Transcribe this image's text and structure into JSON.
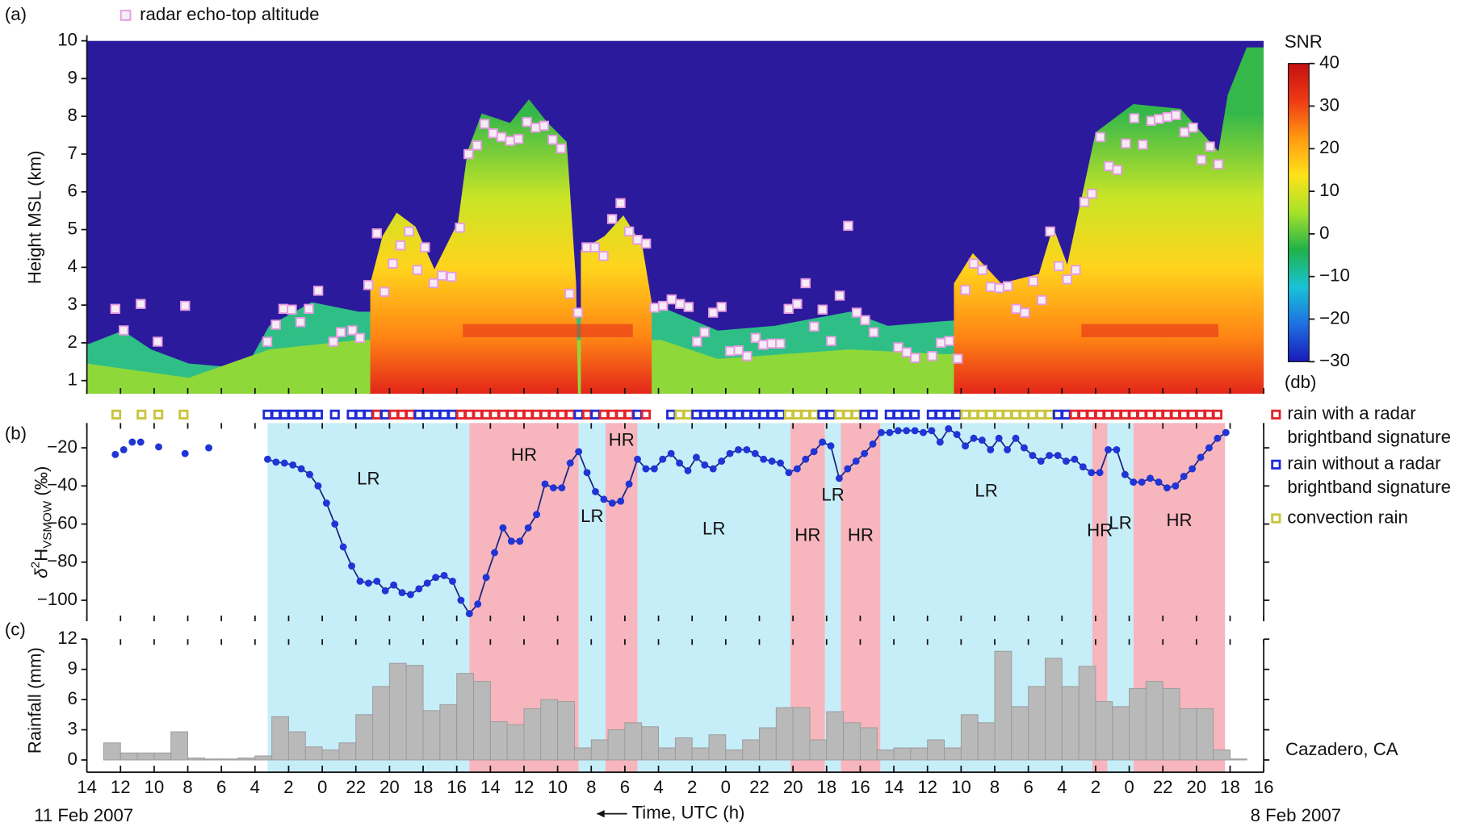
{
  "chart_data": [
    {
      "type": "scatter",
      "panel_label": "(a)",
      "ylabel": "Height MSL (km)",
      "xlim": [
        0,
        70
      ],
      "ylim": [
        0.65,
        10
      ],
      "yticks": [
        1,
        2,
        3,
        4,
        5,
        6,
        7,
        8,
        9,
        10
      ],
      "series": [
        {
          "name": "radar echo-top altitude",
          "color": "#e49be0",
          "x": [
            1.69,
            2.19,
            3.2,
            4.21,
            5.84,
            10.73,
            11.24,
            11.69,
            12.19,
            12.7,
            13.2,
            13.76,
            14.66,
            15.11,
            15.79,
            16.24,
            16.74,
            17.25,
            17.7,
            18.2,
            18.65,
            19.16,
            19.66,
            20.11,
            20.62,
            21.12,
            21.69,
            22.19,
            22.7,
            23.2,
            23.65,
            24.16,
            24.66,
            25.17,
            25.67,
            26.18,
            26.69,
            27.19,
            27.7,
            28.2,
            28.71,
            29.21,
            29.72,
            30.22,
            30.73,
            31.24,
            31.74,
            32.25,
            32.75,
            33.26,
            33.76,
            34.27,
            34.78,
            35.28,
            35.79,
            36.29,
            36.74,
            37.25,
            37.75,
            38.26,
            38.76,
            39.27,
            39.78,
            40.22,
            40.73,
            41.24,
            41.74,
            42.25,
            42.75,
            43.26,
            43.76,
            44.27,
            44.78,
            45.28,
            45.79,
            46.29,
            46.8,
            48.26,
            48.76,
            49.27,
            50.28,
            50.79,
            51.29,
            51.8,
            52.25,
            52.75,
            53.26,
            53.76,
            54.27,
            54.78,
            55.28,
            55.79,
            56.29,
            56.8,
            57.3,
            57.81,
            58.31,
            58.82,
            59.33,
            59.78,
            60.28,
            60.79,
            61.29,
            61.8,
            62.3,
            62.81,
            63.31,
            63.76,
            64.27,
            64.78,
            65.28,
            65.79,
            66.29,
            66.8,
            67.3
          ],
          "values": [
            2.9,
            2.33,
            3.03,
            2.03,
            2.98,
            2.03,
            2.48,
            2.9,
            2.88,
            2.55,
            2.9,
            3.38,
            2.03,
            2.28,
            2.33,
            2.13,
            3.53,
            4.9,
            3.35,
            4.1,
            4.58,
            4.95,
            3.93,
            4.53,
            3.58,
            3.78,
            3.75,
            5.05,
            7.0,
            7.23,
            7.8,
            7.55,
            7.45,
            7.35,
            7.4,
            7.85,
            7.7,
            7.75,
            7.38,
            7.15,
            3.3,
            2.8,
            4.53,
            4.53,
            4.3,
            5.28,
            5.7,
            4.95,
            4.73,
            4.63,
            2.93,
            2.98,
            3.15,
            3.03,
            2.95,
            2.03,
            2.28,
            2.8,
            2.95,
            1.78,
            1.8,
            1.65,
            2.13,
            1.95,
            1.98,
            1.98,
            2.9,
            3.03,
            3.58,
            2.43,
            2.88,
            2.05,
            3.25,
            5.1,
            2.8,
            2.6,
            2.28,
            1.88,
            1.75,
            1.6,
            1.65,
            2.0,
            2.05,
            1.58,
            3.4,
            4.1,
            3.93,
            3.48,
            3.45,
            3.5,
            2.9,
            2.8,
            3.63,
            3.13,
            4.95,
            4.03,
            3.68,
            3.93,
            5.73,
            5.95,
            7.45,
            6.68,
            6.58,
            7.28,
            7.95,
            7.25,
            7.88,
            7.93,
            7.98,
            8.03,
            7.58,
            7.7,
            6.85,
            7.2,
            6.73
          ]
        }
      ],
      "colorbar": {
        "title": "SNR",
        "unit": "(db)",
        "lim": [
          -30,
          40
        ],
        "ticks": [
          40,
          30,
          20,
          10,
          0,
          {
            "value": -10,
            "label": "−10"
          },
          {
            "value": -20,
            "label": "−20"
          },
          {
            "value": -30,
            "label": "−30"
          }
        ],
        "colors": [
          "#1a1ab8",
          "#1e6fe0",
          "#19c2d8",
          "#1fb24a",
          "#a6e22a",
          "#ffe21a",
          "#ff9a12",
          "#ef3a14",
          "#c40f12"
        ]
      }
    },
    {
      "type": "line",
      "panel_label": "(b)",
      "ylabel": {
        "symbol": "δ",
        "sup": "2",
        "main": "H",
        "sub": "VSMOW",
        "unit": " (‰)"
      },
      "xlim": [
        0,
        70
      ],
      "ylim": [
        -111,
        -7
      ],
      "yticks": [
        {
          "value": -20,
          "label": "−20"
        },
        {
          "value": -40,
          "label": "−40"
        },
        {
          "value": -60,
          "label": "−60"
        },
        {
          "value": -80,
          "label": "−80"
        },
        {
          "value": -100,
          "label": "−100"
        }
      ],
      "color": "#1b2580",
      "marker_color": "#1f35d6",
      "x": [
        1.69,
        1.94,
        2.19,
        2.45,
        2.7,
        2.95,
        3.2,
        3.7,
        4.27,
        5.0,
        5.84,
        6.5,
        7.25,
        9.0,
        10.75,
        11.25,
        11.75,
        12.25,
        12.75,
        13.25,
        13.75,
        14.25,
        14.75,
        15.25,
        15.75,
        16.25,
        16.75,
        17.25,
        17.75,
        18.25,
        18.75,
        19.25,
        19.75,
        20.25,
        20.75,
        21.25,
        21.75,
        22.25,
        22.75,
        23.25,
        23.75,
        24.25,
        24.75,
        25.25,
        25.75,
        26.25,
        26.75,
        27.25,
        27.75,
        28.25,
        28.75,
        29.25,
        29.75,
        30.25,
        30.75,
        31.25,
        31.75,
        32.25,
        32.75,
        33.25,
        33.75,
        34.25,
        34.75,
        35.25,
        35.75,
        36.25,
        36.75,
        37.25,
        37.75,
        38.25,
        38.75,
        39.25,
        39.75,
        40.25,
        40.75,
        41.25,
        41.75,
        42.25,
        42.75,
        43.25,
        43.75,
        44.25,
        44.75,
        45.25,
        45.75,
        46.25,
        46.75,
        47.25,
        47.75,
        48.25,
        48.75,
        49.25,
        49.75,
        50.25,
        50.75,
        51.25,
        51.75,
        52.25,
        52.75,
        53.25,
        53.75,
        54.25,
        54.75,
        55.25,
        55.75,
        56.25,
        56.75,
        57.25,
        57.75,
        58.25,
        58.75,
        59.25,
        59.75,
        60.25,
        60.75,
        61.25,
        61.75,
        62.25,
        62.75,
        63.25,
        63.75,
        64.25,
        64.75,
        65.25,
        65.75,
        66.25,
        66.75,
        67.25,
        67.75
      ],
      "values": [
        -23.5,
        null,
        -21,
        null,
        -17,
        null,
        -17,
        null,
        -19.5,
        null,
        -23,
        null,
        -20,
        null,
        -26,
        -27.5,
        -28,
        -29,
        -31,
        -34,
        -40,
        -49,
        -60,
        -72,
        -82,
        -90,
        -91,
        -90,
        -95,
        -92,
        -96,
        -97,
        -94,
        -91,
        -88,
        -87,
        -90,
        -100,
        -107,
        -102,
        -88,
        -75,
        -62,
        -69,
        -69,
        -62,
        -55,
        -39,
        -41,
        -41,
        -28,
        -22,
        -33,
        -43,
        -47,
        -49,
        -48,
        -39,
        -26,
        -31,
        -31,
        -26,
        -23,
        -28,
        -32,
        -25,
        -29,
        -31,
        -27,
        -23,
        -21,
        -21,
        -23,
        -26,
        -27,
        -28,
        -33,
        -31,
        -26,
        -22,
        -17,
        -19,
        -36,
        -31,
        -27,
        -23,
        -18,
        -12,
        -12,
        -11,
        -11,
        -11,
        -12,
        -11,
        -17,
        -10,
        -13,
        -19,
        -15,
        -16,
        -21,
        -15,
        -21,
        -15,
        -20,
        -24,
        -27,
        -24,
        -24,
        -27,
        -26,
        -30,
        -33,
        -33,
        -21,
        -21,
        -34,
        -38,
        -38,
        -36,
        -38,
        -41,
        -40,
        -35,
        -31,
        -25,
        -20,
        -15,
        -12
      ],
      "region_colors": {
        "LR": "#c6eef9",
        "HR": "#f7b5bd"
      },
      "regions": [
        {
          "label": "LR",
          "start": 10.75,
          "end": 22.75
        },
        {
          "label": "HR",
          "start": 22.75,
          "end": 29.25
        },
        {
          "label": "LR",
          "start": 29.25,
          "end": 30.85
        },
        {
          "label": "HR",
          "start": 30.85,
          "end": 32.75
        },
        {
          "label": "LR",
          "start": 32.75,
          "end": 41.85
        },
        {
          "label": "HR",
          "start": 41.85,
          "end": 43.9
        },
        {
          "label": "LR",
          "start": 43.9,
          "end": 44.85
        },
        {
          "label": "HR",
          "start": 44.85,
          "end": 47.2
        },
        {
          "label": "LR",
          "start": 47.2,
          "end": 59.8
        },
        {
          "label": "HR",
          "start": 59.8,
          "end": 60.7
        },
        {
          "label": "LR",
          "start": 60.7,
          "end": 62.25
        },
        {
          "label": "HR",
          "start": 62.25,
          "end": 67.7
        }
      ],
      "rain_types": {
        "legend": [
          {
            "name": [
              "rain with a radar",
              "brightband signature"
            ],
            "color": "#e3222a"
          },
          {
            "name": [
              "rain without a radar",
              "brightband signature"
            ],
            "color": "#1e2bd6"
          },
          {
            "name": [
              "convection rain"
            ],
            "color": "#c9c43c"
          }
        ],
        "x": [
          1.75,
          3.25,
          4.25,
          5.75,
          10.75,
          11.25,
          11.75,
          12.25,
          12.75,
          13.25,
          13.75,
          14.25,
          14.75,
          15.25,
          15.75,
          16.25,
          16.75,
          17.25,
          17.75,
          18.25,
          18.75,
          19.25,
          19.75,
          20.25,
          20.75,
          21.25,
          21.75,
          22.25,
          22.75,
          23.25,
          23.75,
          24.25,
          24.75,
          25.25,
          25.75,
          26.25,
          26.75,
          27.25,
          27.75,
          28.25,
          28.75,
          29.25,
          29.75,
          30.25,
          30.75,
          31.25,
          31.75,
          32.25,
          32.75,
          33.25,
          33.75,
          34.25,
          34.75,
          35.25,
          35.75,
          36.25,
          36.75,
          37.25,
          37.75,
          38.25,
          38.75,
          39.25,
          39.75,
          40.25,
          40.75,
          41.25,
          41.75,
          42.25,
          42.75,
          43.25,
          43.75,
          44.25,
          44.75,
          45.25,
          45.75,
          46.25,
          46.75,
          47.25,
          47.75,
          48.25,
          48.75,
          49.25,
          49.75,
          50.25,
          50.75,
          51.25,
          51.75,
          52.25,
          52.75,
          53.25,
          53.75,
          54.25,
          54.75,
          55.25,
          55.75,
          56.25,
          56.75,
          57.25,
          57.75,
          58.25,
          58.75,
          59.25,
          59.75,
          60.25,
          60.75,
          61.25,
          61.75,
          62.25,
          62.75,
          63.25,
          63.75,
          64.25,
          64.75,
          65.25,
          65.75,
          66.25,
          66.75,
          67.25
        ],
        "kinds": [
          2,
          2,
          2,
          2,
          1,
          1,
          1,
          1,
          1,
          1,
          1,
          null,
          1,
          null,
          1,
          1,
          1,
          0,
          1,
          0,
          0,
          0,
          1,
          1,
          1,
          1,
          1,
          0,
          0,
          0,
          0,
          0,
          0,
          0,
          0,
          0,
          0,
          0,
          0,
          0,
          0,
          1,
          0,
          1,
          0,
          0,
          0,
          0,
          1,
          0,
          null,
          null,
          1,
          2,
          2,
          1,
          1,
          1,
          1,
          1,
          1,
          1,
          1,
          1,
          1,
          1,
          2,
          2,
          2,
          2,
          1,
          1,
          2,
          2,
          2,
          1,
          1,
          null,
          1,
          1,
          1,
          1,
          null,
          1,
          1,
          1,
          1,
          2,
          2,
          2,
          2,
          2,
          2,
          2,
          2,
          2,
          2,
          2,
          1,
          1,
          0,
          0,
          0,
          0,
          0,
          0,
          0,
          0,
          0,
          0,
          0,
          0,
          0,
          0,
          0,
          0,
          0,
          0
        ]
      }
    },
    {
      "type": "histogram",
      "panel_label": "(c)",
      "ylabel": "Rainfall (mm)",
      "annotation": "Cazadero, CA",
      "xlabel": "Time, UTC (h)",
      "start_date": "11 Feb 2007",
      "end_date": "8 Feb 2007",
      "xlim": [
        0,
        70
      ],
      "xticks": [
        {
          "value": 0,
          "label": "14"
        },
        {
          "value": 2,
          "label": "12"
        },
        {
          "value": 4,
          "label": "10"
        },
        {
          "value": 6,
          "label": "8"
        },
        {
          "value": 8,
          "label": "6"
        },
        {
          "value": 10,
          "label": "4"
        },
        {
          "value": 12,
          "label": "2"
        },
        {
          "value": 14,
          "label": "0"
        },
        {
          "value": 16,
          "label": "22"
        },
        {
          "value": 18,
          "label": "20"
        },
        {
          "value": 20,
          "label": "18"
        },
        {
          "value": 22,
          "label": "16"
        },
        {
          "value": 24,
          "label": "14"
        },
        {
          "value": 26,
          "label": "12"
        },
        {
          "value": 28,
          "label": "10"
        },
        {
          "value": 30,
          "label": "8"
        },
        {
          "value": 32,
          "label": "6"
        },
        {
          "value": 34,
          "label": "4"
        },
        {
          "value": 36,
          "label": "2"
        },
        {
          "value": 38,
          "label": "0"
        },
        {
          "value": 40,
          "label": "22"
        },
        {
          "value": 42,
          "label": "20"
        },
        {
          "value": 44,
          "label": "18"
        },
        {
          "value": 46,
          "label": "16"
        },
        {
          "value": 48,
          "label": "14"
        },
        {
          "value": 50,
          "label": "12"
        },
        {
          "value": 52,
          "label": "10"
        },
        {
          "value": 54,
          "label": "8"
        },
        {
          "value": 56,
          "label": "6"
        },
        {
          "value": 58,
          "label": "4"
        },
        {
          "value": 60,
          "label": "2"
        },
        {
          "value": 62,
          "label": "0"
        },
        {
          "value": 64,
          "label": "22"
        },
        {
          "value": 66,
          "label": "20"
        },
        {
          "value": 68,
          "label": "18"
        },
        {
          "value": 70,
          "label": "16"
        }
      ],
      "ylim": [
        0,
        12
      ],
      "yticks": [
        0,
        3,
        6,
        9,
        12
      ],
      "bins": [
        1,
        2,
        3,
        4,
        5,
        6,
        7,
        8,
        9,
        10,
        11,
        12,
        13,
        14,
        15,
        16,
        17,
        18,
        19,
        20,
        21,
        22,
        23,
        24,
        25,
        26,
        27,
        28,
        29,
        30,
        31,
        32,
        33,
        34,
        35,
        36,
        37,
        38,
        39,
        40,
        41,
        42,
        43,
        44,
        45,
        46,
        47,
        48,
        49,
        50,
        51,
        52,
        53,
        54,
        55,
        56,
        57,
        58,
        59,
        60,
        61,
        62,
        63,
        64,
        65,
        66,
        67,
        68,
        69
      ],
      "values": [
        1.7,
        0.7,
        0.7,
        0.7,
        2.8,
        0.2,
        0.1,
        0.1,
        0.2,
        0.4,
        4.3,
        2.8,
        1.3,
        1.0,
        1.7,
        4.5,
        7.3,
        9.6,
        9.4,
        4.9,
        5.5,
        8.6,
        7.8,
        3.8,
        3.5,
        5.1,
        6.0,
        5.8,
        1.2,
        2.0,
        3.0,
        3.7,
        3.3,
        1.2,
        2.2,
        1.2,
        2.5,
        1.0,
        2.0,
        3.2,
        5.2,
        5.2,
        2.0,
        4.8,
        3.7,
        3.2,
        1.0,
        1.2,
        1.2,
        2.0,
        1.2,
        4.5,
        3.7,
        10.8,
        5.3,
        7.3,
        10.1,
        7.3,
        9.3,
        5.8,
        5.3,
        7.1,
        7.8,
        7.1,
        5.1,
        5.1,
        1.0,
        0.1
      ],
      "color": "#b9b9b9"
    }
  ]
}
